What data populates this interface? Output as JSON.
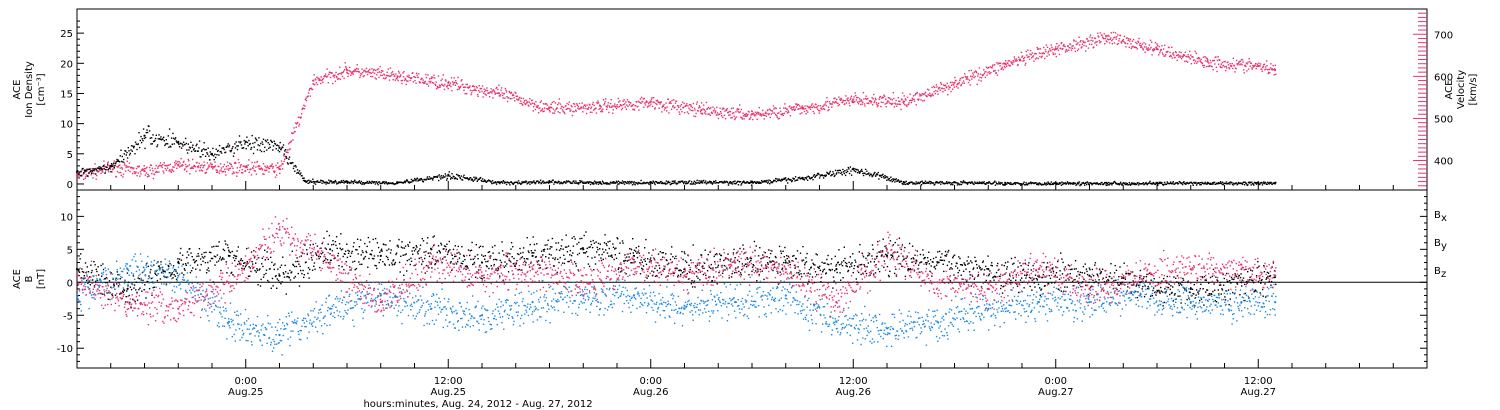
{
  "figure": {
    "xlabel": "hours:minutes, Aug. 24, 2012 - Aug. 27, 2012",
    "time_axis": {
      "start": "2012-08-24T14:00",
      "end": "2012-08-27T22:00",
      "major_ticks": [
        {
          "t": "2012-08-25T00:00",
          "time": "0:00",
          "date": "Aug.25"
        },
        {
          "t": "2012-08-25T12:00",
          "time": "12:00",
          "date": "Aug.25"
        },
        {
          "t": "2012-08-26T00:00",
          "time": "0:00",
          "date": "Aug.26"
        },
        {
          "t": "2012-08-26T12:00",
          "time": "12:00",
          "date": "Aug.26"
        },
        {
          "t": "2012-08-27T00:00",
          "time": "0:00",
          "date": "Aug.27"
        },
        {
          "t": "2012-08-27T12:00",
          "time": "12:00",
          "date": "Aug.27"
        }
      ],
      "minor_tick_hours": 2
    },
    "colors": {
      "density": "#000000",
      "velocity": "#e8336a",
      "bx": "#000000",
      "by": "#1e88e5",
      "bz": "#e8336a"
    }
  },
  "chart_data": [
    {
      "type": "scatter",
      "panel": "top",
      "ylabel_left": [
        "ACE",
        "Ion Density",
        "[cm⁻³]"
      ],
      "ylabel_right": [
        "ACE",
        "Velocity",
        "[km/s]"
      ],
      "ylim_left": [
        -1,
        29
      ],
      "yticks_left": [
        0,
        5,
        10,
        15,
        20,
        25
      ],
      "ylim_right": [
        330,
        760
      ],
      "yticks_right": [
        400,
        500,
        600,
        700
      ],
      "series": [
        {
          "axis": "left",
          "color": "#000000",
          "x": [
            "2012-08-24T14:00",
            "2012-08-24T16:00",
            "2012-08-24T18:00",
            "2012-08-24T20:00",
            "2012-08-24T22:00",
            "2012-08-25T00:00",
            "2012-08-25T02:00",
            "2012-08-25T03:30",
            "2012-08-25T06:00",
            "2012-08-25T09:00",
            "2012-08-25T12:00",
            "2012-08-25T15:00",
            "2012-08-25T18:00",
            "2012-08-25T21:00",
            "2012-08-26T00:00",
            "2012-08-26T03:00",
            "2012-08-26T06:00",
            "2012-08-26T09:00",
            "2012-08-26T12:00",
            "2012-08-26T15:00",
            "2012-08-26T18:00",
            "2012-08-26T21:00",
            "2012-08-27T00:00",
            "2012-08-27T03:00",
            "2012-08-27T06:00",
            "2012-08-27T09:00",
            "2012-08-27T12:00",
            "2012-08-27T13:00"
          ],
          "values": [
            2,
            3,
            8,
            7,
            5,
            7,
            6,
            0.5,
            0.4,
            0.3,
            1.5,
            0.3,
            0.4,
            0.3,
            0.3,
            0.4,
            0.3,
            1,
            2.5,
            0.3,
            0.3,
            0.2,
            0.2,
            0.2,
            0.2,
            0.2,
            0.2,
            0.2
          ]
        },
        {
          "axis": "right",
          "color": "#e8336a",
          "x": [
            "2012-08-24T14:00",
            "2012-08-24T16:00",
            "2012-08-24T18:00",
            "2012-08-24T20:00",
            "2012-08-24T22:00",
            "2012-08-25T00:00",
            "2012-08-25T02:00",
            "2012-08-25T04:00",
            "2012-08-25T06:00",
            "2012-08-25T09:00",
            "2012-08-25T12:00",
            "2012-08-25T15:00",
            "2012-08-25T18:00",
            "2012-08-25T21:00",
            "2012-08-26T00:00",
            "2012-08-26T03:00",
            "2012-08-26T06:00",
            "2012-08-26T09:00",
            "2012-08-26T12:00",
            "2012-08-26T15:00",
            "2012-08-26T18:00",
            "2012-08-26T21:00",
            "2012-08-27T00:00",
            "2012-08-27T03:00",
            "2012-08-27T06:00",
            "2012-08-27T09:00",
            "2012-08-27T12:00",
            "2012-08-27T13:00"
          ],
          "values": [
            365,
            385,
            375,
            390,
            385,
            385,
            380,
            590,
            615,
            600,
            585,
            560,
            525,
            530,
            540,
            520,
            510,
            525,
            545,
            540,
            585,
            630,
            665,
            695,
            665,
            635,
            625,
            615
          ]
        }
      ]
    },
    {
      "type": "scatter",
      "panel": "bottom",
      "ylabel": [
        "ACE",
        "B",
        "[nT]"
      ],
      "ylim": [
        -13,
        14
      ],
      "yticks": [
        -10,
        -5,
        0,
        5,
        10
      ],
      "legend": [
        "B",
        "B",
        "B"
      ],
      "legend_subscripts": [
        "x",
        "y",
        "z"
      ],
      "series": [
        {
          "name": "Bx",
          "color": "#000000",
          "x": [
            "2012-08-24T14:00",
            "2012-08-24T17:00",
            "2012-08-24T20:00",
            "2012-08-24T23:00",
            "2012-08-25T02:00",
            "2012-08-25T05:00",
            "2012-08-25T08:00",
            "2012-08-25T11:00",
            "2012-08-25T14:00",
            "2012-08-25T17:00",
            "2012-08-25T20:00",
            "2012-08-25T23:00",
            "2012-08-26T02:00",
            "2012-08-26T05:00",
            "2012-08-26T08:00",
            "2012-08-26T11:00",
            "2012-08-26T14:00",
            "2012-08-26T17:00",
            "2012-08-26T20:00",
            "2012-08-26T23:00",
            "2012-08-27T02:00",
            "2012-08-27T05:00",
            "2012-08-27T08:00",
            "2012-08-27T11:00",
            "2012-08-27T13:00"
          ],
          "values": [
            2,
            -1,
            3,
            4,
            1,
            5,
            4,
            5,
            3,
            4,
            5,
            4,
            2,
            3,
            3,
            2,
            4,
            3,
            2,
            1,
            1,
            0,
            -1,
            0,
            1
          ]
        },
        {
          "name": "By",
          "color": "#1e88e5",
          "x": [
            "2012-08-24T14:00",
            "2012-08-24T17:00",
            "2012-08-24T20:00",
            "2012-08-24T23:00",
            "2012-08-25T02:00",
            "2012-08-25T05:00",
            "2012-08-25T08:00",
            "2012-08-25T11:00",
            "2012-08-25T14:00",
            "2012-08-25T17:00",
            "2012-08-25T20:00",
            "2012-08-25T23:00",
            "2012-08-26T02:00",
            "2012-08-26T05:00",
            "2012-08-26T08:00",
            "2012-08-26T11:00",
            "2012-08-26T14:00",
            "2012-08-26T17:00",
            "2012-08-26T20:00",
            "2012-08-26T23:00",
            "2012-08-27T02:00",
            "2012-08-27T05:00",
            "2012-08-27T08:00",
            "2012-08-27T11:00",
            "2012-08-27T13:00"
          ],
          "values": [
            -2,
            2,
            1,
            -6,
            -8,
            -4,
            -2,
            -4,
            -5,
            -3,
            -2,
            -2,
            -4,
            -3,
            -2,
            -6,
            -7,
            -6,
            -4,
            -3,
            -3,
            -2,
            -3,
            -3,
            -3
          ]
        },
        {
          "name": "Bz",
          "color": "#e8336a",
          "x": [
            "2012-08-24T14:00",
            "2012-08-24T17:00",
            "2012-08-24T20:00",
            "2012-08-24T23:00",
            "2012-08-25T02:00",
            "2012-08-25T05:00",
            "2012-08-25T08:00",
            "2012-08-25T11:00",
            "2012-08-25T14:00",
            "2012-08-25T17:00",
            "2012-08-25T20:00",
            "2012-08-25T23:00",
            "2012-08-26T02:00",
            "2012-08-26T05:00",
            "2012-08-26T08:00",
            "2012-08-26T11:00",
            "2012-08-26T14:00",
            "2012-08-26T17:00",
            "2012-08-26T20:00",
            "2012-08-26T23:00",
            "2012-08-27T02:00",
            "2012-08-27T05:00",
            "2012-08-27T08:00",
            "2012-08-27T11:00",
            "2012-08-27T13:00"
          ],
          "values": [
            1,
            -3,
            -4,
            0,
            8,
            3,
            -3,
            3,
            1,
            2,
            0,
            3,
            1,
            3,
            2,
            -3,
            5,
            0,
            -1,
            2,
            -1,
            1,
            2,
            2,
            1
          ]
        }
      ]
    }
  ]
}
